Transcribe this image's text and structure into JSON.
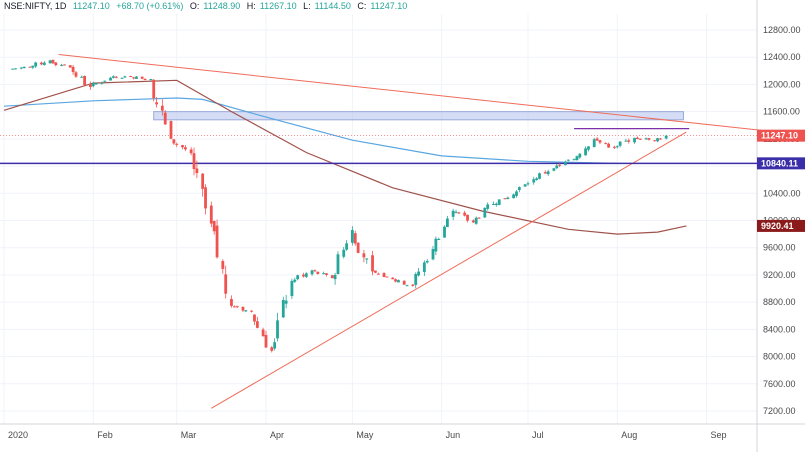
{
  "header": {
    "symbol": "NSE:NIFTY, 1D",
    "last": "11247.10",
    "change": "+68.70 (+0.61%)",
    "open_label": "O:",
    "open": "11248.90",
    "high_label": "H:",
    "high": "11267.10",
    "low_label": "L:",
    "low": "11144.50",
    "close_label": "C:",
    "close": "11247.10"
  },
  "colors": {
    "up": "#26a69a",
    "down": "#ef5350",
    "trendline": "#ef6c5a",
    "ma_short": "#5aa7e0",
    "ma_long": "#a0524a",
    "support": "#3b2ea8",
    "resistance_zone": "#b7c6ee",
    "consolidation": "#7b2fa8",
    "price_label": "#ef5350",
    "support_label": "#3b2ea8",
    "ma_label": "#8b1a1a"
  },
  "chart_data": {
    "type": "candlestick",
    "title": "",
    "y_ticks": [
      7200,
      7600,
      8000,
      8400,
      8800,
      9200,
      9600,
      10000,
      10400,
      10800,
      11200,
      11600,
      12000,
      12400,
      12800
    ],
    "y_tick_labels": [
      "7200.00",
      "7600.00",
      "8000.00",
      "8400.00",
      "8800.00",
      "9200.00",
      "9600.00",
      "10000.00",
      "10400.00",
      "10800.00",
      "11200.00",
      "11600.00",
      "12000.00",
      "12400.00",
      "12800.00"
    ],
    "ylim": [
      7000,
      13000
    ],
    "x_range": [
      "2020-01-01",
      "2020-09-30"
    ],
    "x_ticks": [
      {
        "date": "2020-01-01",
        "label": "2020"
      },
      {
        "date": "2020-02-01",
        "label": "Feb"
      },
      {
        "date": "2020-03-01",
        "label": "Mar"
      },
      {
        "date": "2020-04-01",
        "label": "Apr"
      },
      {
        "date": "2020-05-01",
        "label": "May"
      },
      {
        "date": "2020-06-01",
        "label": "Jun"
      },
      {
        "date": "2020-07-01",
        "label": "Jul"
      },
      {
        "date": "2020-08-01",
        "label": "Aug"
      },
      {
        "date": "2020-09-01",
        "label": "Sep"
      }
    ],
    "price_labels": [
      {
        "value": 11247.1,
        "text": "11247.10",
        "kind": "price"
      },
      {
        "value": 10840.11,
        "text": "10840.11",
        "kind": "support"
      },
      {
        "value": 9920.41,
        "text": "9920.41",
        "kind": "ma"
      }
    ],
    "weekly_closes": [
      {
        "date": "2020-01-03",
        "close": 12226
      },
      {
        "date": "2020-01-10",
        "close": 12257
      },
      {
        "date": "2020-01-17",
        "close": 12352
      },
      {
        "date": "2020-01-24",
        "close": 12248
      },
      {
        "date": "2020-01-31",
        "close": 11962
      },
      {
        "date": "2020-02-07",
        "close": 12098
      },
      {
        "date": "2020-02-14",
        "close": 12113
      },
      {
        "date": "2020-02-21",
        "close": 12080
      },
      {
        "date": "2020-02-28",
        "close": 11202
      },
      {
        "date": "2020-03-06",
        "close": 10989
      },
      {
        "date": "2020-03-13",
        "close": 9955
      },
      {
        "date": "2020-03-20",
        "close": 8745
      },
      {
        "date": "2020-03-27",
        "close": 8660
      },
      {
        "date": "2020-04-03",
        "close": 8084
      },
      {
        "date": "2020-04-10",
        "close": 9112
      },
      {
        "date": "2020-04-17",
        "close": 9267
      },
      {
        "date": "2020-04-24",
        "close": 9154
      },
      {
        "date": "2020-05-01",
        "close": 9860
      },
      {
        "date": "2020-05-08",
        "close": 9251
      },
      {
        "date": "2020-05-15",
        "close": 9137
      },
      {
        "date": "2020-05-22",
        "close": 9039
      },
      {
        "date": "2020-05-29",
        "close": 9580
      },
      {
        "date": "2020-06-05",
        "close": 10142
      },
      {
        "date": "2020-06-12",
        "close": 9973
      },
      {
        "date": "2020-06-19",
        "close": 10244
      },
      {
        "date": "2020-06-26",
        "close": 10383
      },
      {
        "date": "2020-07-03",
        "close": 10607
      },
      {
        "date": "2020-07-10",
        "close": 10768
      },
      {
        "date": "2020-07-17",
        "close": 10901
      },
      {
        "date": "2020-07-24",
        "close": 11194
      },
      {
        "date": "2020-07-31",
        "close": 11073
      },
      {
        "date": "2020-08-07",
        "close": 11214
      },
      {
        "date": "2020-08-14",
        "close": 11178
      },
      {
        "date": "2020-08-18",
        "close": 11247.1
      }
    ],
    "ma_short": [
      {
        "date": "2020-01-01",
        "value": 11680
      },
      {
        "date": "2020-02-01",
        "value": 11760
      },
      {
        "date": "2020-03-01",
        "value": 11800
      },
      {
        "date": "2020-03-10",
        "value": 11780
      },
      {
        "date": "2020-04-01",
        "value": 11520
      },
      {
        "date": "2020-05-01",
        "value": 11180
      },
      {
        "date": "2020-06-01",
        "value": 10950
      },
      {
        "date": "2020-07-01",
        "value": 10870
      },
      {
        "date": "2020-08-01",
        "value": 10840
      }
    ],
    "ma_long": [
      {
        "date": "2020-01-01",
        "value": 11620
      },
      {
        "date": "2020-02-01",
        "value": 12020
      },
      {
        "date": "2020-03-01",
        "value": 12060
      },
      {
        "date": "2020-03-20",
        "value": 11600
      },
      {
        "date": "2020-04-15",
        "value": 11000
      },
      {
        "date": "2020-05-15",
        "value": 10480
      },
      {
        "date": "2020-06-15",
        "value": 10140
      },
      {
        "date": "2020-07-15",
        "value": 9870
      },
      {
        "date": "2020-08-01",
        "value": 9800
      },
      {
        "date": "2020-08-15",
        "value": 9830
      },
      {
        "date": "2020-08-25",
        "value": 9920.41
      }
    ],
    "trendlines": [
      {
        "name": "",
        "from": {
          "date": "2020-01-20",
          "value": 12440
        },
        "to": {
          "date": "2020-09-30",
          "value": 11280
        }
      },
      {
        "name": "",
        "from": {
          "date": "2020-03-13",
          "value": 7240
        },
        "to": {
          "date": "2020-08-25",
          "value": 11300
        }
      }
    ],
    "support_line": 10840.11,
    "resistance_zone": {
      "from": "2020-02-22",
      "to": "2020-08-24",
      "low": 11480,
      "high": 11600
    },
    "consolidation_band": {
      "from": "2020-07-17",
      "to": "2020-08-26",
      "value": 11350
    }
  }
}
